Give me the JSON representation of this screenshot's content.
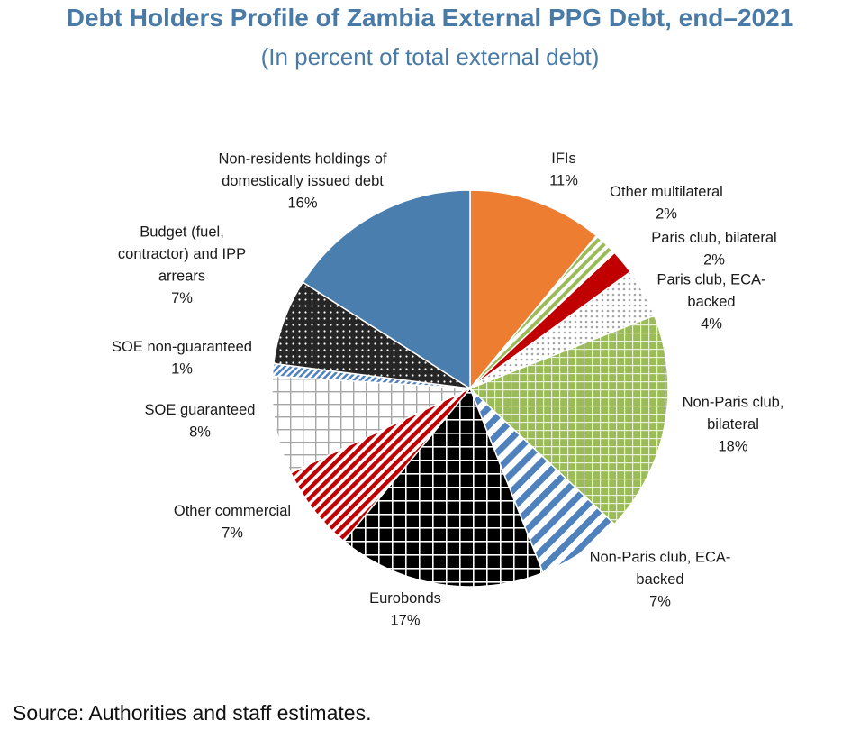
{
  "title": "Debt Holders Profile of Zambia External PPG Debt, end–2021",
  "subtitle": "(In percent of total external debt)",
  "source": "Source: Authorities and staff estimates.",
  "chart_data": {
    "type": "pie",
    "title": "Debt Holders Profile of Zambia External PPG Debt, end–2021",
    "subtitle": "(In percent of total external debt)",
    "slices": [
      {
        "label": [
          "IFIs"
        ],
        "value": 11,
        "value_label": "11%",
        "color": "#ed7d31",
        "pattern": "solid"
      },
      {
        "label": [
          "Other multilateral"
        ],
        "value": 2,
        "value_label": "2%",
        "color": "#9bbb59",
        "pattern": "diagonal-stripes"
      },
      {
        "label": [
          "Paris club, bilateral"
        ],
        "value": 2,
        "value_label": "2%",
        "color": "#c00000",
        "pattern": "solid"
      },
      {
        "label": [
          "Paris club, ECA-",
          "backed"
        ],
        "value": 4,
        "value_label": "4%",
        "color": "#a6a6a6",
        "pattern": "dots"
      },
      {
        "label": [
          "Non-Paris club,",
          "bilateral"
        ],
        "value": 18,
        "value_label": "18%",
        "color": "#9bbb59",
        "pattern": "grid-on-color"
      },
      {
        "label": [
          "Non-Paris club, ECA-",
          "backed"
        ],
        "value": 7,
        "value_label": "7%",
        "color": "#4f81bd",
        "pattern": "wide-diagonal-stripes"
      },
      {
        "label": [
          "Eurobonds"
        ],
        "value": 17,
        "value_label": "17%",
        "color": "#000000",
        "pattern": "white-grid"
      },
      {
        "label": [
          "Other commercial"
        ],
        "value": 7,
        "value_label": "7%",
        "color": "#c00000",
        "pattern": "diagonal-stripes"
      },
      {
        "label": [
          "SOE guaranteed"
        ],
        "value": 8,
        "value_label": "8%",
        "color": "#a6a6a6",
        "pattern": "grid"
      },
      {
        "label": [
          "SOE non-guaranteed"
        ],
        "value": 1,
        "value_label": "1%",
        "color": "#4f81bd",
        "pattern": "stripes"
      },
      {
        "label": [
          "Budget (fuel,",
          "contractor) and IPP",
          "arrears"
        ],
        "value": 7,
        "value_label": "7%",
        "color": "#262626",
        "pattern": "white-dots"
      },
      {
        "label": [
          "Non-residents holdings of",
          "domestically issued debt"
        ],
        "value": 16,
        "value_label": "16%",
        "color": "#4a7eae",
        "pattern": "solid"
      }
    ]
  }
}
